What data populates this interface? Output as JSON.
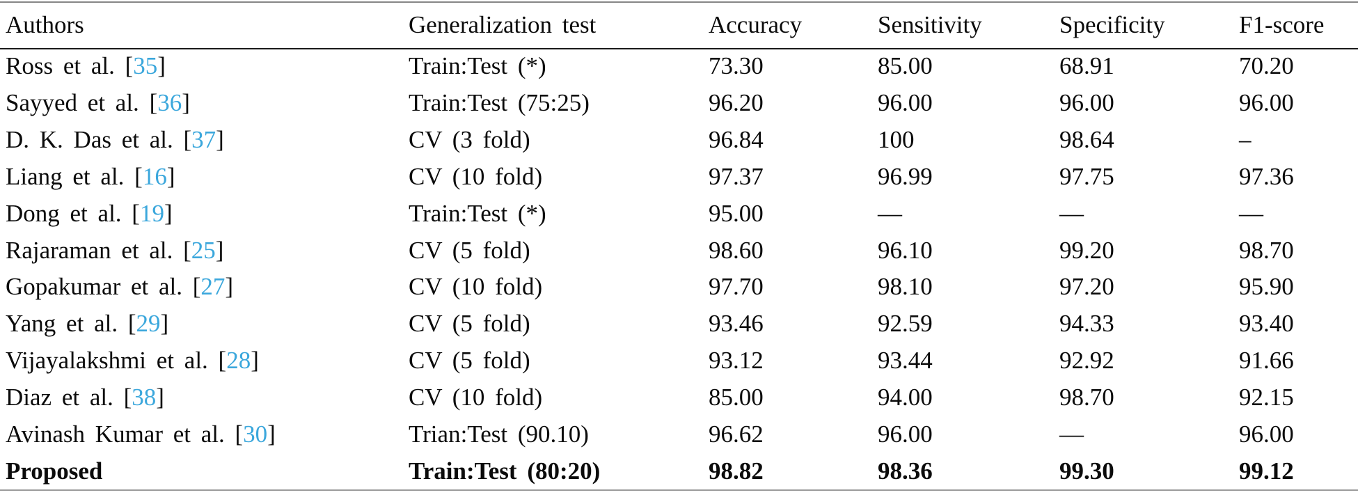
{
  "colors": {
    "citation_blue": "#3BA7DC",
    "text": "#0b0b0b"
  },
  "table": {
    "columns": [
      "Authors",
      "Generalization test",
      "Accuracy",
      "Sensitivity",
      "Specificity",
      "F1-score"
    ],
    "rows": [
      {
        "author": "Ross et al.",
        "ref": "35",
        "test": "Train:Test (*)",
        "accuracy": "73.30",
        "sensitivity": "85.00",
        "specificity": "68.91",
        "f1": "70.20",
        "emphasis": false
      },
      {
        "author": "Sayyed et al.",
        "ref": "36",
        "test": "Train:Test (75:25)",
        "accuracy": "96.20",
        "sensitivity": "96.00",
        "specificity": "96.00",
        "f1": "96.00",
        "emphasis": false
      },
      {
        "author": "D. K. Das et al.",
        "ref": "37",
        "test": "CV (3 fold)",
        "accuracy": "96.84",
        "sensitivity": "100",
        "specificity": "98.64",
        "f1": "–",
        "emphasis": false
      },
      {
        "author": "Liang et al.",
        "ref": "16",
        "test": "CV (10 fold)",
        "accuracy": "97.37",
        "sensitivity": "96.99",
        "specificity": "97.75",
        "f1": "97.36",
        "emphasis": false
      },
      {
        "author": "Dong et al.",
        "ref": "19",
        "test": "Train:Test (*)",
        "accuracy": "95.00",
        "sensitivity": "—",
        "specificity": "—",
        "f1": "—",
        "emphasis": false
      },
      {
        "author": "Rajaraman et al.",
        "ref": "25",
        "test": "CV (5 fold)",
        "accuracy": "98.60",
        "sensitivity": "96.10",
        "specificity": "99.20",
        "f1": "98.70",
        "emphasis": false
      },
      {
        "author": "Gopakumar et al.",
        "ref": "27",
        "test": "CV (10 fold)",
        "accuracy": "97.70",
        "sensitivity": "98.10",
        "specificity": "97.20",
        "f1": "95.90",
        "emphasis": false
      },
      {
        "author": "Yang et al.",
        "ref": "29",
        "test": "CV (5 fold)",
        "accuracy": "93.46",
        "sensitivity": "92.59",
        "specificity": "94.33",
        "f1": "93.40",
        "emphasis": false
      },
      {
        "author": "Vijayalakshmi et al.",
        "ref": "28",
        "test": "CV (5 fold)",
        "accuracy": "93.12",
        "sensitivity": "93.44",
        "specificity": "92.92",
        "f1": "91.66",
        "emphasis": false
      },
      {
        "author": "Diaz et al.",
        "ref": "38",
        "test": "CV (10 fold)",
        "accuracy": "85.00",
        "sensitivity": "94.00",
        "specificity": "98.70",
        "f1": "92.15",
        "emphasis": false
      },
      {
        "author": "Avinash Kumar et al.",
        "ref": "30",
        "test": "Trian:Test (90.10)",
        "accuracy": "96.62",
        "sensitivity": "96.00",
        "specificity": "—",
        "f1": "96.00",
        "emphasis": false
      },
      {
        "author": "Proposed",
        "ref": null,
        "test": "Train:Test (80:20)",
        "accuracy": "98.82",
        "sensitivity": "98.36",
        "specificity": "99.30",
        "f1": "99.12",
        "emphasis": true
      }
    ]
  }
}
